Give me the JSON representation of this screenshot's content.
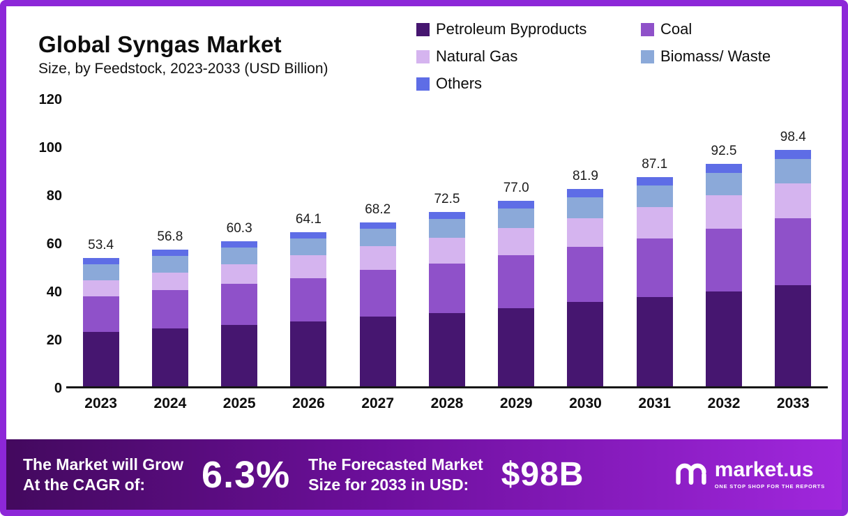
{
  "header": {
    "title": "Global Syngas Market",
    "subtitle": "Size, by Feedstock, 2023-2033 (USD Billion)"
  },
  "chart_data": {
    "type": "bar",
    "stacked": true,
    "title": "Global Syngas Market Size, by Feedstock, 2023-2033 (USD Billion)",
    "categories": [
      "2023",
      "2024",
      "2025",
      "2026",
      "2027",
      "2028",
      "2029",
      "2030",
      "2031",
      "2032",
      "2033"
    ],
    "series": [
      {
        "name": "Petroleum Byproducts",
        "color": "#461670",
        "values": [
          22.5,
          24.0,
          25.5,
          27.0,
          29.0,
          30.5,
          32.5,
          35.0,
          37.0,
          39.5,
          42.0
        ]
      },
      {
        "name": "Coal",
        "color": "#8f51c9",
        "values": [
          15.0,
          16.0,
          17.0,
          18.0,
          19.3,
          20.5,
          22.0,
          23.0,
          24.5,
          26.0,
          28.0
        ]
      },
      {
        "name": "Natural Gas",
        "color": "#d5b4ef",
        "values": [
          6.5,
          7.3,
          8.3,
          9.5,
          10.0,
          10.8,
          11.3,
          12.0,
          13.0,
          14.0,
          14.5
        ]
      },
      {
        "name": "Biomass/ Waste",
        "color": "#8ba9d9",
        "values": [
          6.6,
          6.8,
          7.0,
          7.0,
          7.2,
          7.8,
          8.2,
          8.6,
          9.0,
          9.2,
          10.0
        ]
      },
      {
        "name": "Others",
        "color": "#5e6de6",
        "values": [
          2.8,
          2.7,
          2.5,
          2.6,
          2.7,
          2.9,
          3.0,
          3.3,
          3.6,
          3.8,
          3.9
        ]
      }
    ],
    "totals": [
      "53.4",
      "56.8",
      "60.3",
      "64.1",
      "68.2",
      "72.5",
      "77.0",
      "81.9",
      "87.1",
      "92.5",
      "98.4"
    ],
    "ylim": [
      0,
      120
    ],
    "yticks": [
      0,
      20,
      40,
      60,
      80,
      100,
      120
    ],
    "grid": false,
    "legend_position": "top-right"
  },
  "banner": {
    "cagr_label_line1": "The Market will Grow",
    "cagr_label_line2": "At the CAGR of:",
    "cagr_value": "6.3%",
    "forecast_label_line1": "The Forecasted Market",
    "forecast_label_line2": "Size for 2033 in USD:",
    "forecast_value": "$98B",
    "logo_text": "market.us",
    "logo_tagline": "ONE STOP SHOP FOR THE REPORTS"
  },
  "colors": {
    "frame_border": "#8d27d8",
    "banner_gradient_start": "#43095e",
    "banner_gradient_end": "#a027dd",
    "axis_line": "#161616"
  }
}
